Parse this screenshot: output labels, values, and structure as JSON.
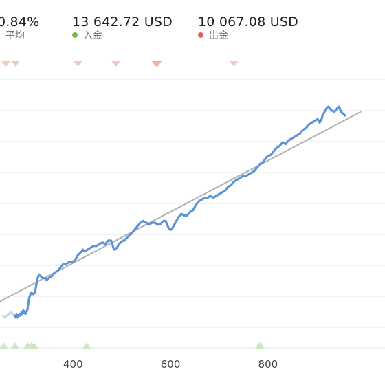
{
  "stats": [
    {
      "value": "0.84%",
      "label": "平均",
      "dot_color": ""
    },
    {
      "value": "13 642.72 USD",
      "label": "入金",
      "dot_color": "#6cc04a"
    },
    {
      "value": "10 067.08 USD",
      "label": "出金",
      "dot_color": "#e0674f"
    }
  ],
  "colors": {
    "equity_line": "#5b93d6",
    "equity_faded": "#c9d3ef",
    "trend_line": "#b0b0b0",
    "grid": "#e6e6e6",
    "deposit_marker": "#cfe6c2",
    "withdraw_marker": "#f3c9bd",
    "withdraw_marker_strong": "#eeb3a3"
  },
  "chart_data": {
    "type": "line",
    "title": "",
    "xlabel": "",
    "ylabel": "",
    "x_ticks": [
      "400",
      "600",
      "800"
    ],
    "x_tick_values": [
      400,
      600,
      800
    ],
    "y_ticks": [],
    "series": [
      {
        "name": "",
        "style": "equity",
        "x": [
          280,
          282,
          284,
          286,
          288,
          290,
          292,
          294,
          296,
          298,
          302,
          306,
          310,
          314,
          318,
          322,
          326,
          330,
          334,
          338,
          342,
          346,
          350,
          356,
          362,
          368,
          374,
          380,
          386,
          392,
          398,
          404,
          410,
          414,
          418,
          420,
          424,
          430,
          436,
          442,
          448,
          454,
          460,
          466,
          472,
          478,
          484,
          490,
          494,
          498,
          502,
          506,
          508,
          512,
          516,
          520,
          526,
          532,
          538,
          544,
          550,
          556,
          562,
          568,
          574,
          578,
          582,
          586,
          590,
          596,
          600,
          604,
          610,
          616,
          622,
          628,
          634,
          640,
          646,
          652,
          658,
          664,
          670,
          676,
          682,
          688,
          694,
          700,
          706,
          712,
          718,
          724,
          730,
          736,
          742,
          748,
          754,
          760,
          766,
          772,
          778,
          784,
          790,
          798,
          806,
          812,
          818,
          824,
          830,
          836,
          842,
          848,
          854,
          860,
          866,
          872,
          878,
          884,
          890,
          896,
          902,
          906,
          910,
          912,
          916,
          918,
          920,
          924,
          930,
          936,
          942,
          946,
          950,
          954,
          958
        ],
        "y": [
          58.0,
          57.5,
          58.5,
          57.5,
          58.0,
          58.5,
          58.0,
          59.0,
          58.5,
          59.5,
          58.5,
          59.5,
          63.0,
          64.5,
          64.0,
          64.5,
          68.0,
          69.5,
          69.0,
          68.5,
          68.5,
          68.0,
          68.5,
          69.0,
          70.0,
          70.5,
          71.5,
          72.5,
          72.5,
          73.0,
          73.0,
          73.5,
          75.0,
          75.5,
          76.0,
          76.5,
          76.0,
          76.5,
          77.0,
          77.5,
          77.5,
          78.0,
          78.5,
          78.0,
          79.0,
          79.0,
          76.5,
          77.0,
          78.0,
          78.5,
          79.0,
          79.0,
          79.5,
          80.0,
          80.5,
          81.0,
          82.0,
          83.0,
          84.0,
          84.5,
          84.0,
          83.5,
          84.0,
          84.0,
          83.5,
          83.5,
          84.0,
          84.5,
          84.5,
          82.5,
          82.0,
          82.5,
          84.0,
          85.5,
          86.5,
          86.0,
          86.0,
          87.0,
          87.5,
          89.0,
          90.0,
          90.5,
          91.0,
          91.0,
          91.5,
          91.0,
          91.5,
          92.0,
          92.5,
          93.0,
          94.0,
          94.5,
          95.5,
          96.0,
          96.5,
          97.0,
          97.0,
          97.5,
          98.0,
          98.5,
          99.5,
          100.5,
          101.0,
          102.5,
          103.0,
          104.0,
          105.0,
          105.5,
          106.5,
          106.0,
          107.0,
          107.5,
          108.0,
          108.5,
          109.0,
          110.0,
          110.5,
          111.5,
          112.0,
          112.5,
          113.0,
          112.0,
          113.0,
          114.0,
          115.0,
          115.5,
          116.0,
          116.5,
          115.5,
          115.0,
          116.0,
          116.5,
          115.0,
          114.5,
          114.0
        ]
      },
      {
        "name": "",
        "style": "faded",
        "x": [
          256,
          260,
          264,
          268,
          272,
          276,
          280
        ],
        "y": [
          58.0,
          57.5,
          58.0,
          58.5,
          59.0,
          58.5,
          58.0
        ]
      },
      {
        "name": "",
        "style": "trend",
        "x": [
          250,
          990
        ],
        "y": [
          62.0,
          115.0
        ]
      }
    ],
    "markers": {
      "withdrawals": [
        {
          "x": 262,
          "strong": false
        },
        {
          "x": 282,
          "strong": false
        },
        {
          "x": 410,
          "strong": false
        },
        {
          "x": 488,
          "strong": false
        },
        {
          "x": 570,
          "strong": true
        },
        {
          "x": 573,
          "strong": true
        },
        {
          "x": 730,
          "strong": false
        }
      ],
      "deposits": [
        {
          "x": 258
        },
        {
          "x": 281
        },
        {
          "x": 307
        },
        {
          "x": 314
        },
        {
          "x": 320
        },
        {
          "x": 428
        },
        {
          "x": 782
        },
        {
          "x": 784
        }
      ]
    },
    "xlim": [
      250,
      1040
    ],
    "ylim": [
      49,
      124
    ],
    "grid": true
  }
}
